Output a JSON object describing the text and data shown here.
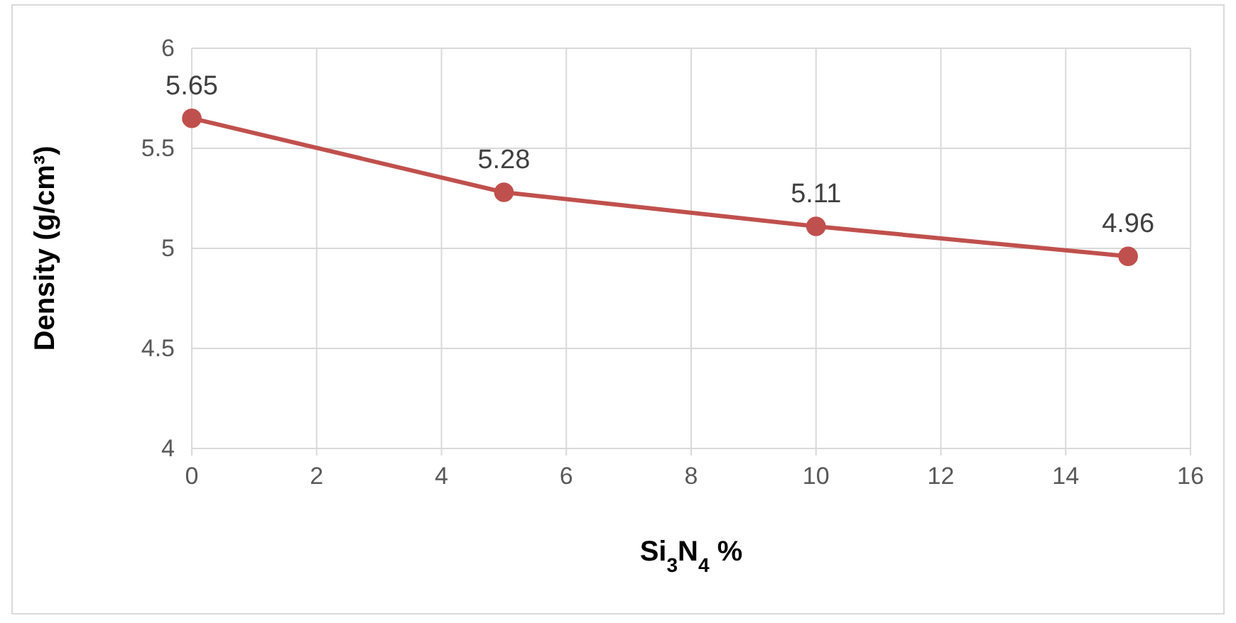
{
  "chart_data": {
    "type": "line",
    "xlabel": "Si$_{3}$N$_{4}$ %",
    "ylabel": "Density (g/cm³)",
    "x": [
      0,
      5,
      10,
      15
    ],
    "series": [
      {
        "color": "#c0504d",
        "values": [
          5.65,
          5.28,
          5.11,
          4.96
        ]
      }
    ],
    "xlim": [
      0,
      16
    ],
    "xticks": [
      0,
      2,
      4,
      6,
      8,
      10,
      12,
      14,
      16
    ],
    "ylim": [
      4,
      6
    ],
    "yticks": [
      4,
      4.5,
      5,
      5.5,
      6
    ],
    "grid": true,
    "marker": "circle",
    "line_style": "solid",
    "data_labels": true
  }
}
